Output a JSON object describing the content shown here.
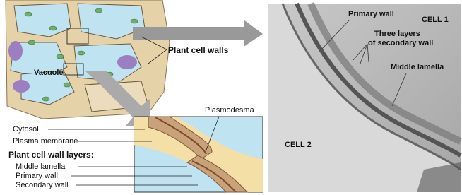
{
  "left_panel": {
    "callout": "Plant cell walls",
    "vacuole": "Vacuole",
    "plasmodesma": "Plasmodesma",
    "labels": [
      "Cytosol",
      "Plasma membrane"
    ],
    "layers_title": "Plant cell wall layers:",
    "layers": [
      "Middle lamella",
      "Primary wall",
      "Secondary wall"
    ]
  },
  "micrograph": {
    "cell_1": "CELL 1",
    "cell_2": "CELL 2",
    "primary_wall": "Primary wall",
    "secondary_wall": [
      "Three layers",
      "of secondary wall"
    ],
    "middle_lamella": "Middle lamella"
  }
}
